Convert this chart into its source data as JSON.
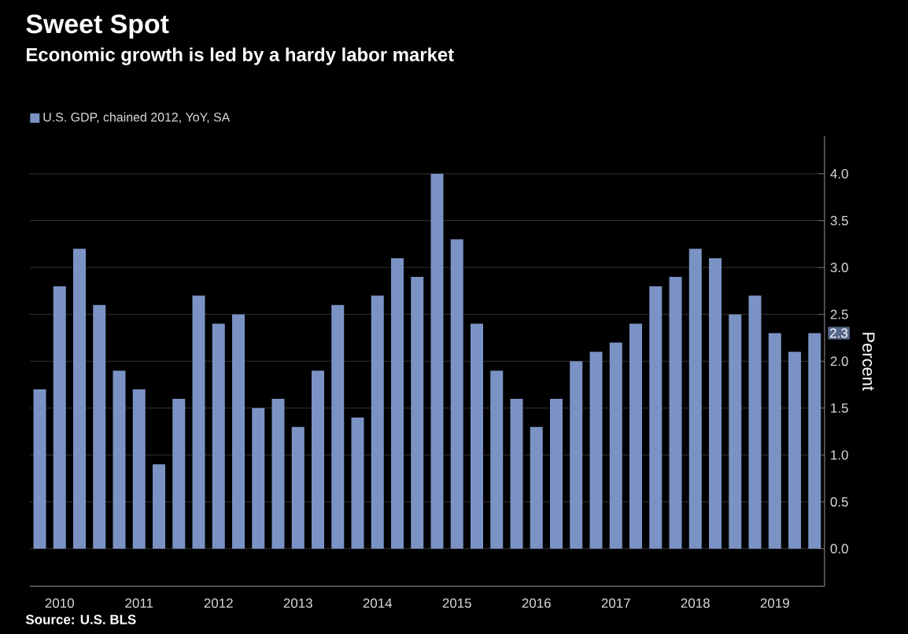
{
  "chart_data": {
    "type": "bar",
    "title": "Sweet Spot",
    "subtitle": "Economic growth is led by a hardy labor market",
    "ylabel": "Percent",
    "categories": [
      null,
      "2010",
      null,
      null,
      null,
      "2011",
      null,
      null,
      null,
      "2012",
      null,
      null,
      null,
      "2013",
      null,
      null,
      null,
      "2014",
      null,
      null,
      null,
      "2015",
      null,
      null,
      null,
      "2016",
      null,
      null,
      null,
      "2017",
      null,
      null,
      null,
      "2018",
      null,
      null,
      null,
      "2019",
      null,
      null
    ],
    "series": [
      {
        "name": "U.S. GDP, chained 2012, YoY, SA",
        "color": "#7b93c4",
        "values": [
          1.7,
          2.8,
          3.2,
          2.6,
          1.9,
          1.7,
          0.9,
          1.6,
          2.7,
          2.4,
          2.5,
          1.5,
          1.6,
          1.3,
          1.9,
          2.6,
          1.4,
          2.7,
          3.1,
          2.9,
          4.0,
          3.3,
          2.4,
          1.9,
          1.6,
          1.3,
          1.6,
          2.0,
          2.1,
          2.2,
          2.4,
          2.8,
          2.9,
          3.2,
          3.1,
          2.5,
          2.7,
          2.3,
          2.1,
          2.3
        ]
      }
    ],
    "ylim": [
      -0.4,
      4.4
    ],
    "yticks": [
      {
        "value": 0,
        "label": "0.0"
      },
      {
        "value": 0.5,
        "label": "0.5"
      },
      {
        "value": 1,
        "label": "1.0"
      },
      {
        "value": 1.5,
        "label": "1.5"
      },
      {
        "value": 2,
        "label": "2.0"
      },
      {
        "value": 2.5,
        "label": "2.5"
      },
      {
        "value": 3,
        "label": "3.0"
      },
      {
        "value": 3.5,
        "label": "3.5"
      },
      {
        "value": 4,
        "label": "4.0"
      }
    ],
    "grid": "y",
    "legend": "top left",
    "annotations": [
      "2.3",
      "Source: U.S. BLS"
    ]
  }
}
